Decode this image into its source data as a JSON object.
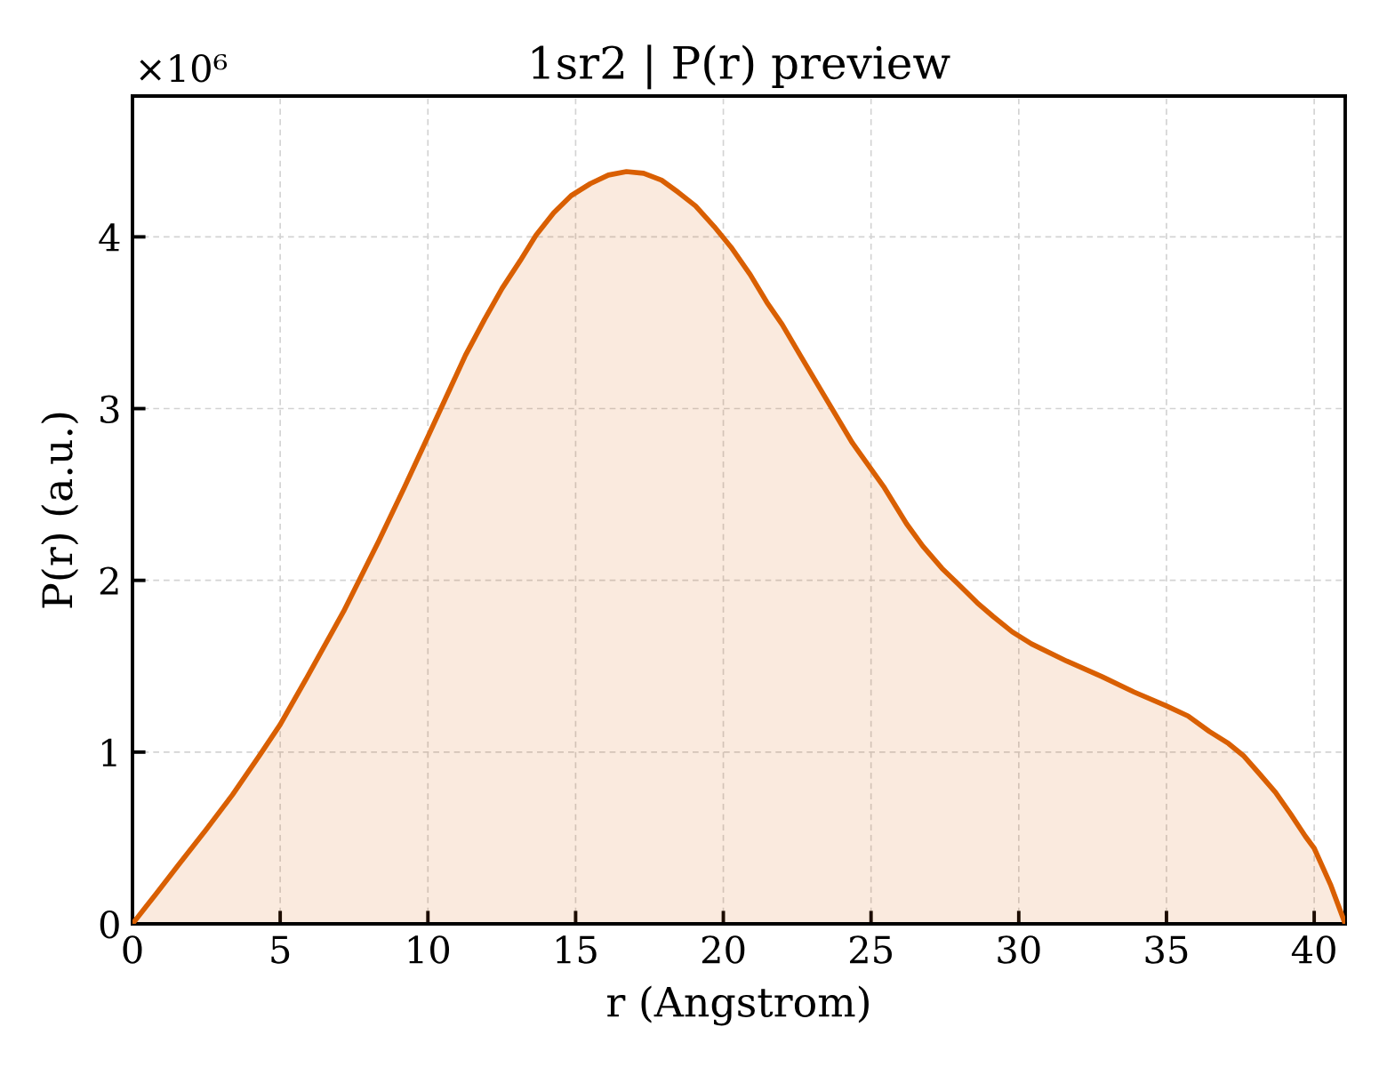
{
  "chart_data": {
    "type": "area",
    "title": "1sr2 | P(r) preview",
    "xlabel": "r (Angstrom)",
    "ylabel": "P(r) (a.u.)",
    "annotations": [
      "×10⁶"
    ],
    "x": [
      0,
      0.8,
      1.55,
      2.5,
      3.38,
      4.3,
      5,
      5.89,
      7.15,
      8.34,
      9.2,
      10.09,
      11.27,
      11.92,
      12.51,
      13.12,
      13.66,
      14.26,
      14.85,
      15.5,
      16.11,
      16.72,
      17.3,
      17.91,
      18.47,
      19.06,
      19.69,
      20.26,
      20.91,
      21.47,
      21.99,
      22.64,
      23.4,
      24.37,
      25.45,
      26.2,
      26.75,
      27.4,
      27.94,
      28.59,
      29.13,
      29.78,
      30.43,
      31.62,
      32.81,
      33.9,
      34.98,
      35.73,
      36.45,
      37.1,
      37.6,
      38.14,
      38.69,
      39.2,
      39.7,
      40,
      40.55,
      41.05
    ],
    "series": [
      {
        "color": "#d95f02",
        "values": [
          0,
          0.175,
          0.342,
          0.55,
          0.75,
          0.98,
          1.16,
          1.43,
          1.82,
          2.23,
          2.54,
          2.87,
          3.31,
          3.52,
          3.7,
          3.86,
          4.01,
          4.14,
          4.24,
          4.31,
          4.36,
          4.38,
          4.37,
          4.33,
          4.26,
          4.18,
          4.06,
          3.94,
          3.78,
          3.62,
          3.49,
          3.3,
          3.08,
          2.8,
          2.54,
          2.33,
          2.2,
          2.07,
          1.98,
          1.87,
          1.79,
          1.7,
          1.63,
          1.53,
          1.44,
          1.35,
          1.27,
          1.21,
          1.12,
          1.05,
          0.98,
          0.875,
          0.766,
          0.64,
          0.51,
          0.44,
          0.23,
          0
        ]
      }
    ],
    "xlim": [
      0,
      41.05
    ],
    "xticks": [
      0,
      5,
      10,
      15,
      20,
      25,
      30,
      35,
      40
    ],
    "ylim": [
      0,
      4.82
    ],
    "yticks": [
      0,
      1,
      2,
      3,
      4
    ],
    "grid": true
  }
}
